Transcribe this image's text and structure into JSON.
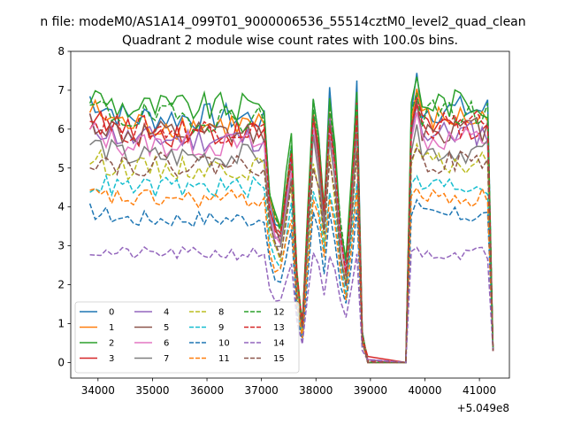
{
  "chart_data": {
    "type": "line",
    "suptitle": "n file: modeM0/AS1A14_099T01_9000006536_55514cztM0_level2_quad_clean",
    "title": "Quadrant 2 module wise count rates with 100.0s bins.",
    "xlabel": "",
    "ylabel": "",
    "xlim": [
      33500,
      41550
    ],
    "ylim": [
      -0.4,
      8
    ],
    "x_offset_label": "+5.049e8",
    "x_ticks": [
      34000,
      35000,
      36000,
      37000,
      38000,
      39000,
      40000,
      41000
    ],
    "x_tick_labels": [
      "34000",
      "35000",
      "36000",
      "37000",
      "38000",
      "39000",
      "40000",
      "41000"
    ],
    "y_ticks": [
      0,
      1,
      2,
      3,
      4,
      5,
      6,
      7,
      8
    ],
    "y_tick_labels": [
      "0",
      "1",
      "2",
      "3",
      "4",
      "5",
      "6",
      "7",
      "8"
    ],
    "series": [
      {
        "name": "0",
        "color": "#1f77b4",
        "dash": "solid",
        "base": 6.3,
        "peak": 7.3
      },
      {
        "name": "1",
        "color": "#ff7f0e",
        "dash": "solid",
        "base": 6.1,
        "peak": 6.9
      },
      {
        "name": "2",
        "color": "#2ca02c",
        "dash": "solid",
        "base": 6.55,
        "peak": 7.2
      },
      {
        "name": "3",
        "color": "#d62728",
        "dash": "solid",
        "base": 5.9,
        "peak": 6.7
      },
      {
        "name": "4",
        "color": "#9467bd",
        "dash": "solid",
        "base": 5.75,
        "peak": 6.5
      },
      {
        "name": "5",
        "color": "#8c564b",
        "dash": "solid",
        "base": 5.85,
        "peak": 6.6
      },
      {
        "name": "6",
        "color": "#e377c2",
        "dash": "solid",
        "base": 5.6,
        "peak": 6.3
      },
      {
        "name": "7",
        "color": "#7f7f7f",
        "dash": "solid",
        "base": 5.3,
        "peak": 6.0
      },
      {
        "name": "8",
        "color": "#bcbd22",
        "dash": "dashed",
        "base": 5.0,
        "peak": 5.5
      },
      {
        "name": "9",
        "color": "#17becf",
        "dash": "dashed",
        "base": 4.5,
        "peak": 4.7
      },
      {
        "name": "10",
        "color": "#1f77b4",
        "dash": "dashed",
        "base": 3.7,
        "peak": 4.1
      },
      {
        "name": "11",
        "color": "#ff7f0e",
        "dash": "dashed",
        "base": 4.2,
        "peak": 4.4
      },
      {
        "name": "12",
        "color": "#2ca02c",
        "dash": "dashed",
        "base": 6.3,
        "peak": 6.8
      },
      {
        "name": "13",
        "color": "#d62728",
        "dash": "dashed",
        "base": 6.0,
        "peak": 6.5
      },
      {
        "name": "14",
        "color": "#9467bd",
        "dash": "dashed",
        "base": 2.8,
        "peak": 2.9
      },
      {
        "name": "15",
        "color": "#8c564b",
        "dash": "dashed",
        "base": 5.1,
        "peak": 5.4
      }
    ],
    "legend": {
      "location": "lower-left",
      "columns": 4
    }
  }
}
